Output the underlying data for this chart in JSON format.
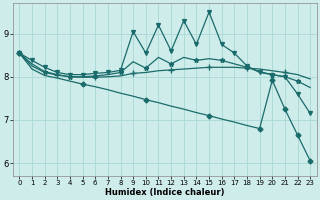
{
  "xlabel": "Humidex (Indice chaleur)",
  "background_color": "#ceecea",
  "grid_color": "#a8d8d4",
  "line_color": "#1a6b6b",
  "xlim": [
    -0.5,
    23.5
  ],
  "ylim": [
    5.7,
    9.7
  ],
  "xticks": [
    0,
    1,
    2,
    3,
    4,
    5,
    6,
    7,
    8,
    9,
    10,
    11,
    12,
    13,
    14,
    15,
    16,
    17,
    18,
    19,
    20,
    21,
    22,
    23
  ],
  "yticks": [
    6,
    7,
    8,
    9
  ],
  "line1_y": [
    8.55,
    8.38,
    8.22,
    8.1,
    8.05,
    8.05,
    8.08,
    8.1,
    8.15,
    9.05,
    8.55,
    9.2,
    8.6,
    9.3,
    8.75,
    9.5,
    8.75,
    8.55,
    8.25,
    8.1,
    8.05,
    8.0,
    7.6,
    7.15
  ],
  "line2_y": [
    8.55,
    8.3,
    8.12,
    8.05,
    8.0,
    8.0,
    8.02,
    8.05,
    8.1,
    8.35,
    8.2,
    8.45,
    8.3,
    8.45,
    8.38,
    8.42,
    8.38,
    8.3,
    8.22,
    8.12,
    8.05,
    8.0,
    7.9,
    7.75
  ],
  "line3_y": [
    8.55,
    8.25,
    8.1,
    8.04,
    8.0,
    7.99,
    7.99,
    8.0,
    8.02,
    8.08,
    8.1,
    8.14,
    8.16,
    8.18,
    8.2,
    8.22,
    8.22,
    8.22,
    8.2,
    8.18,
    8.14,
    8.1,
    8.05,
    7.95
  ],
  "line4_y": [
    8.55,
    8.18,
    8.03,
    7.97,
    7.9,
    7.83,
    7.77,
    7.7,
    7.62,
    7.55,
    7.47,
    7.4,
    7.32,
    7.25,
    7.17,
    7.1,
    7.02,
    6.95,
    6.87,
    6.8,
    7.92,
    7.25,
    6.65,
    6.05
  ],
  "markers1_x": [
    0,
    1,
    2,
    3,
    4,
    5,
    6,
    7,
    8,
    9,
    10,
    11,
    12,
    13,
    14,
    15,
    16,
    17,
    18,
    19,
    20,
    21,
    22,
    23
  ],
  "markers2_x": [
    0,
    2,
    4,
    6,
    8,
    10,
    12,
    14,
    16,
    18,
    20,
    22
  ],
  "markers3_x": [
    0,
    3,
    6,
    9,
    12,
    15,
    18,
    21
  ],
  "markers4_x": [
    0,
    5,
    10,
    15,
    19,
    20,
    21,
    22,
    23
  ]
}
